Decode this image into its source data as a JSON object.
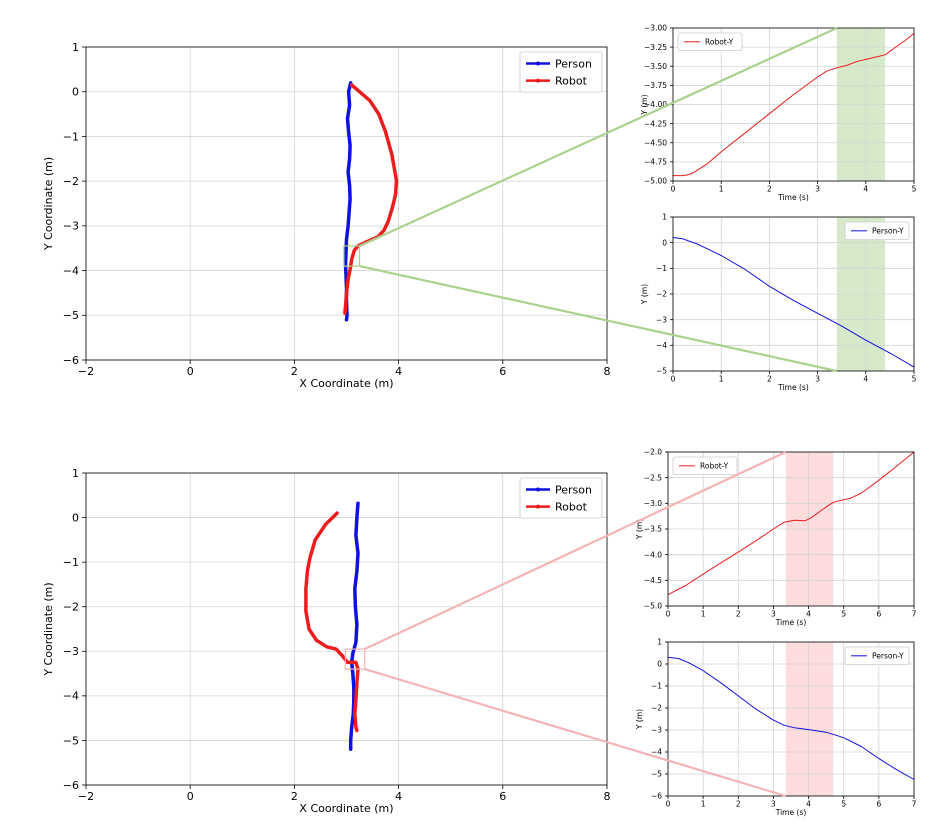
{
  "colors": {
    "person": "#1010e0",
    "robot": "#ee1c1c",
    "grid": "#d4d4d4",
    "zoom_top": "#a8d28e",
    "zoom_bottom": "#f4b4b4",
    "band_top": "#d6eacb",
    "band_bottom": "#fcdcdc"
  },
  "chart_data": [
    {
      "id": "top-main",
      "type": "line",
      "xlabel": "X Coordinate (m)",
      "ylabel": "Y Coordinate (m)",
      "xlim": [
        -2,
        8
      ],
      "ylim": [
        -6,
        1
      ],
      "xticks": [
        -2,
        0,
        2,
        4,
        6,
        8
      ],
      "yticks": [
        -6,
        -5,
        -4,
        -3,
        -2,
        -1,
        0,
        1
      ],
      "grid": true,
      "legend": "top-right",
      "zoom_box": {
        "x": [
          2.95,
          3.25
        ],
        "y": [
          -3.9,
          -3.45
        ]
      },
      "series": [
        {
          "name": "Person",
          "color_key": "person",
          "points": [
            [
              3.08,
              0.2
            ],
            [
              3.04,
              0.0
            ],
            [
              3.06,
              -0.3
            ],
            [
              3.02,
              -0.6
            ],
            [
              3.04,
              -0.9
            ],
            [
              3.07,
              -1.2
            ],
            [
              3.06,
              -1.5
            ],
            [
              3.03,
              -1.8
            ],
            [
              3.06,
              -2.1
            ],
            [
              3.07,
              -2.4
            ],
            [
              3.05,
              -2.7
            ],
            [
              3.03,
              -3.0
            ],
            [
              3.0,
              -3.3
            ],
            [
              2.99,
              -3.6
            ],
            [
              2.98,
              -3.85
            ],
            [
              2.99,
              -4.1
            ],
            [
              3.0,
              -4.4
            ],
            [
              3.0,
              -4.7
            ],
            [
              3.01,
              -5.0
            ],
            [
              3.0,
              -5.1
            ]
          ]
        },
        {
          "name": "Robot",
          "color_key": "robot",
          "points": [
            [
              3.1,
              0.15
            ],
            [
              3.25,
              0.0
            ],
            [
              3.45,
              -0.2
            ],
            [
              3.62,
              -0.5
            ],
            [
              3.75,
              -0.9
            ],
            [
              3.87,
              -1.4
            ],
            [
              3.93,
              -1.8
            ],
            [
              3.96,
              -2.0
            ],
            [
              3.94,
              -2.3
            ],
            [
              3.88,
              -2.6
            ],
            [
              3.8,
              -2.9
            ],
            [
              3.72,
              -3.1
            ],
            [
              3.6,
              -3.25
            ],
            [
              3.4,
              -3.35
            ],
            [
              3.22,
              -3.45
            ],
            [
              3.15,
              -3.55
            ],
            [
              3.1,
              -3.75
            ],
            [
              3.08,
              -3.9
            ],
            [
              3.03,
              -4.2
            ],
            [
              3.0,
              -4.5
            ],
            [
              2.98,
              -4.8
            ],
            [
              2.97,
              -4.95
            ]
          ]
        }
      ]
    },
    {
      "id": "top-robot-y",
      "type": "line",
      "xlabel": "Time (s)",
      "ylabel": "Y (m)",
      "xlim": [
        0,
        5
      ],
      "ylim": [
        -5.0,
        -3.0
      ],
      "xticks": [
        0,
        1,
        2,
        3,
        4,
        5
      ],
      "yticks": [
        -5.0,
        -4.75,
        -4.5,
        -4.25,
        -4.0,
        -3.75,
        -3.5,
        -3.25,
        -3.0
      ],
      "ytick_decimals": 2,
      "grid": true,
      "legend": "top-left",
      "band": [
        3.4,
        4.4
      ],
      "series": [
        {
          "name": "Robot-Y",
          "color_key": "robot",
          "x": [
            0,
            0.1,
            0.2,
            0.3,
            0.4,
            0.5,
            0.7,
            1.0,
            1.5,
            2.0,
            2.5,
            3.0,
            3.2,
            3.4,
            3.6,
            3.8,
            4.0,
            4.2,
            4.4,
            4.6,
            4.8,
            5.0
          ],
          "y": [
            -4.93,
            -4.93,
            -4.93,
            -4.92,
            -4.9,
            -4.86,
            -4.78,
            -4.62,
            -4.37,
            -4.12,
            -3.87,
            -3.64,
            -3.56,
            -3.52,
            -3.49,
            -3.44,
            -3.41,
            -3.38,
            -3.35,
            -3.26,
            -3.17,
            -3.07
          ]
        }
      ]
    },
    {
      "id": "top-person-y",
      "type": "line",
      "xlabel": "Time (s)",
      "ylabel": "Y (m)",
      "xlim": [
        0,
        5
      ],
      "ylim": [
        -5,
        1
      ],
      "xticks": [
        0,
        1,
        2,
        3,
        4,
        5
      ],
      "yticks": [
        -5,
        -4,
        -3,
        -2,
        -1,
        0,
        1
      ],
      "ytick_decimals": 0,
      "grid": true,
      "legend": "top-right",
      "band": [
        3.4,
        4.4
      ],
      "series": [
        {
          "name": "Person-Y",
          "color_key": "person",
          "x": [
            0,
            0.2,
            0.5,
            1.0,
            1.5,
            2.0,
            2.5,
            3.0,
            3.5,
            4.0,
            4.5,
            5.0
          ],
          "y": [
            0.2,
            0.15,
            -0.05,
            -0.5,
            -1.05,
            -1.7,
            -2.25,
            -2.75,
            -3.25,
            -3.8,
            -4.3,
            -4.85
          ]
        }
      ]
    },
    {
      "id": "bottom-main",
      "type": "line",
      "xlabel": "X Coordinate (m)",
      "ylabel": "Y Coordinate (m)",
      "xlim": [
        -2,
        8
      ],
      "ylim": [
        -6,
        1
      ],
      "xticks": [
        -2,
        0,
        2,
        4,
        6,
        8
      ],
      "yticks": [
        -6,
        -5,
        -4,
        -3,
        -2,
        -1,
        0,
        1
      ],
      "grid": true,
      "legend": "top-right",
      "zoom_box": {
        "x": [
          2.98,
          3.35
        ],
        "y": [
          -3.4,
          -2.95
        ]
      },
      "series": [
        {
          "name": "Person",
          "color_key": "person",
          "points": [
            [
              3.22,
              0.32
            ],
            [
              3.2,
              0.0
            ],
            [
              3.18,
              -0.4
            ],
            [
              3.22,
              -0.8
            ],
            [
              3.2,
              -1.2
            ],
            [
              3.16,
              -1.6
            ],
            [
              3.17,
              -2.0
            ],
            [
              3.2,
              -2.4
            ],
            [
              3.18,
              -2.8
            ],
            [
              3.12,
              -3.05
            ],
            [
              3.1,
              -3.25
            ],
            [
              3.12,
              -3.5
            ],
            [
              3.14,
              -3.8
            ],
            [
              3.14,
              -4.1
            ],
            [
              3.13,
              -4.4
            ],
            [
              3.1,
              -4.7
            ],
            [
              3.08,
              -5.0
            ],
            [
              3.08,
              -5.2
            ]
          ]
        },
        {
          "name": "Robot",
          "color_key": "robot",
          "points": [
            [
              2.82,
              0.1
            ],
            [
              2.6,
              -0.15
            ],
            [
              2.4,
              -0.5
            ],
            [
              2.3,
              -0.9
            ],
            [
              2.25,
              -1.2
            ],
            [
              2.22,
              -1.6
            ],
            [
              2.22,
              -2.1
            ],
            [
              2.28,
              -2.5
            ],
            [
              2.42,
              -2.75
            ],
            [
              2.62,
              -2.9
            ],
            [
              2.8,
              -2.95
            ],
            [
              2.92,
              -3.1
            ],
            [
              3.02,
              -3.25
            ],
            [
              3.18,
              -3.25
            ],
            [
              3.22,
              -3.4
            ],
            [
              3.2,
              -3.7
            ],
            [
              3.18,
              -4.1
            ],
            [
              3.16,
              -4.4
            ],
            [
              3.18,
              -4.7
            ],
            [
              3.2,
              -4.78
            ]
          ]
        }
      ]
    },
    {
      "id": "bottom-robot-y",
      "type": "line",
      "xlabel": "Time (s)",
      "ylabel": "Y (m)",
      "xlim": [
        0,
        7
      ],
      "ylim": [
        -5.0,
        -2.0
      ],
      "xticks": [
        0,
        1,
        2,
        3,
        4,
        5,
        6,
        7
      ],
      "yticks": [
        -5.0,
        -4.5,
        -4.0,
        -3.5,
        -3.0,
        -2.5,
        -2.0
      ],
      "ytick_decimals": 1,
      "grid": true,
      "legend": "top-left",
      "band": [
        3.35,
        4.7
      ],
      "series": [
        {
          "name": "Robot-Y",
          "color_key": "robot",
          "x": [
            0,
            0.5,
            1.0,
            1.5,
            2.0,
            2.5,
            3.0,
            3.3,
            3.6,
            3.9,
            4.1,
            4.4,
            4.7,
            5.0,
            5.2,
            5.5,
            6.0,
            6.5,
            7.0
          ],
          "y": [
            -4.78,
            -4.6,
            -4.38,
            -4.16,
            -3.95,
            -3.73,
            -3.5,
            -3.37,
            -3.33,
            -3.34,
            -3.27,
            -3.12,
            -2.98,
            -2.93,
            -2.9,
            -2.8,
            -2.55,
            -2.28,
            -2.0
          ]
        }
      ]
    },
    {
      "id": "bottom-person-y",
      "type": "line",
      "xlabel": "Time (s)",
      "ylabel": "Y (m)",
      "xlim": [
        0,
        7
      ],
      "ylim": [
        -6,
        1
      ],
      "xticks": [
        0,
        1,
        2,
        3,
        4,
        5,
        6,
        7
      ],
      "yticks": [
        -6,
        -5,
        -4,
        -3,
        -2,
        -1,
        0,
        1
      ],
      "ytick_decimals": 0,
      "grid": true,
      "legend": "top-right",
      "band": [
        3.35,
        4.7
      ],
      "series": [
        {
          "name": "Person-Y",
          "color_key": "person",
          "x": [
            0,
            0.3,
            0.6,
            1.0,
            1.5,
            2.0,
            2.5,
            3.0,
            3.3,
            3.6,
            4.0,
            4.5,
            5.0,
            5.5,
            6.0,
            6.5,
            7.0
          ],
          "y": [
            0.3,
            0.25,
            0.05,
            -0.3,
            -0.85,
            -1.45,
            -2.05,
            -2.55,
            -2.78,
            -2.9,
            -2.98,
            -3.1,
            -3.35,
            -3.75,
            -4.3,
            -4.8,
            -5.25
          ]
        }
      ]
    }
  ]
}
